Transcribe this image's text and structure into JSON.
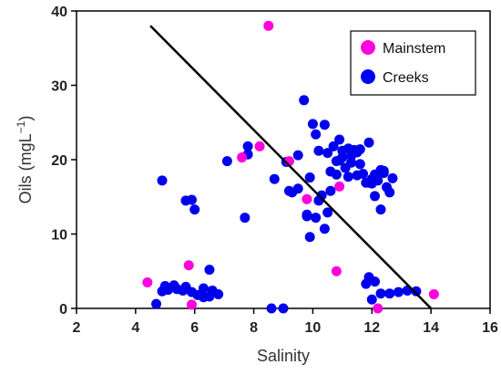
{
  "chart_data": {
    "type": "scatter",
    "xlabel": "Salinity",
    "ylabel_base": "Oils (mgL",
    "ylabel_sup": "−1",
    "ylabel_close": ")",
    "xlim": [
      2,
      16
    ],
    "ylim": [
      0,
      40
    ],
    "xticks": [
      2,
      4,
      6,
      8,
      10,
      12,
      14,
      16
    ],
    "yticks": [
      0,
      10,
      20,
      30,
      40
    ],
    "grid": false,
    "legend_position": "top-right",
    "series": [
      {
        "name": "Mainstem",
        "color": "#ff00dd",
        "x": [
          4.4,
          5.8,
          5.9,
          7.6,
          8.2,
          8.5,
          9.2,
          9.8,
          10.8,
          10.9,
          12.2,
          14.1
        ],
        "y": [
          3.5,
          5.8,
          0.5,
          20.3,
          21.8,
          38.0,
          19.8,
          14.7,
          5.0,
          16.4,
          0.0,
          1.9
        ]
      },
      {
        "name": "Creeks",
        "color": "#0000ee",
        "x": [
          4.7,
          4.9,
          5.0,
          5.1,
          5.3,
          5.6,
          5.7,
          5.9,
          6.1,
          6.3,
          6.5,
          6.6,
          6.8,
          4.9,
          5.7,
          5.9,
          6.0,
          6.5,
          6.3,
          5.4,
          7.1,
          7.7,
          7.8,
          7.8,
          8.6,
          8.7,
          9.0,
          9.1,
          9.3,
          9.5,
          9.7,
          9.8,
          9.9,
          10.0,
          10.1,
          10.2,
          10.3,
          10.4,
          10.5,
          10.6,
          10.7,
          10.8,
          10.9,
          11.0,
          11.1,
          11.2,
          11.3,
          11.4,
          11.5,
          11.6,
          11.7,
          11.8,
          11.9,
          12.0,
          12.1,
          12.2,
          12.3,
          12.4,
          12.5,
          12.7,
          9.2,
          9.5,
          9.8,
          10.1,
          10.4,
          10.6,
          10.2,
          10.8,
          11.0,
          11.3,
          11.6,
          12.3,
          12.6,
          9.9,
          10.5,
          10.9,
          11.2,
          11.5,
          11.9,
          12.0,
          12.4,
          12.1,
          11.8,
          11.9,
          12.0,
          12.1,
          12.3,
          12.6,
          12.9,
          13.2,
          13.5
        ],
        "y": [
          0.6,
          2.3,
          3.0,
          2.5,
          3.1,
          2.4,
          2.9,
          2.2,
          1.8,
          2.7,
          1.6,
          2.4,
          1.9,
          17.2,
          14.5,
          14.6,
          13.3,
          5.2,
          1.5,
          2.6,
          19.8,
          12.2,
          20.7,
          21.8,
          0.0,
          17.4,
          0.0,
          19.7,
          15.6,
          20.6,
          28.0,
          12.6,
          9.6,
          24.8,
          23.4,
          21.2,
          15.2,
          24.7,
          20.9,
          18.4,
          21.8,
          19.8,
          22.7,
          20.3,
          18.9,
          17.7,
          20.5,
          21.3,
          17.9,
          19.4,
          18.1,
          16.9,
          22.3,
          16.8,
          18.0,
          17.2,
          18.6,
          18.2,
          16.3,
          17.5,
          15.8,
          16.1,
          12.4,
          12.2,
          10.7,
          15.8,
          14.5,
          18.0,
          21.2,
          19.6,
          21.4,
          13.3,
          15.6,
          17.6,
          12.9,
          19.9,
          21.5,
          21.0,
          16.9,
          17.4,
          18.5,
          15.1,
          3.3,
          4.2,
          1.2,
          3.6,
          2.0,
          2.0,
          2.2,
          2.4,
          2.3
        ]
      }
    ],
    "trend_line": {
      "x": [
        4.5,
        14.0
      ],
      "y": [
        38.0,
        0.0
      ]
    }
  }
}
